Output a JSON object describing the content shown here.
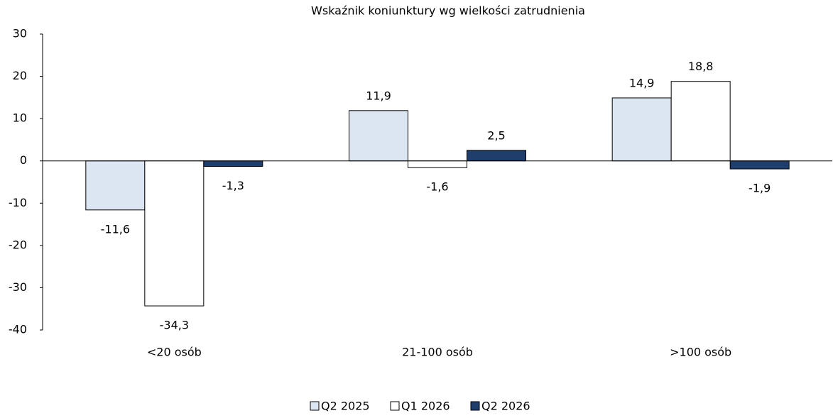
{
  "chart_data": {
    "type": "bar",
    "title": "Wskaźnik koniunktury wg wielkości zatrudnienia",
    "categories": [
      "<20 osób",
      "21-100 osób",
      ">100 osób"
    ],
    "series": [
      {
        "name": "Q2 2025",
        "color": "#dce6f2",
        "values": [
          -11.6,
          11.9,
          14.9
        ],
        "value_labels": [
          "-11,6",
          "11,9",
          "14,9"
        ]
      },
      {
        "name": "Q1 2026",
        "color": "#ffffff",
        "values": [
          -34.3,
          -1.6,
          18.8
        ],
        "value_labels": [
          "-34,3",
          "-1,6",
          "18,8"
        ]
      },
      {
        "name": "Q2 2026",
        "color": "#1f3e6b",
        "values": [
          -1.3,
          2.5,
          -1.9
        ],
        "value_labels": [
          "-1,3",
          "2,5",
          "-1,9"
        ]
      }
    ],
    "ylim": [
      -40,
      30
    ],
    "yticks": [
      -40,
      -30,
      -20,
      -10,
      0,
      10,
      20,
      30
    ],
    "legend": "bottom"
  }
}
